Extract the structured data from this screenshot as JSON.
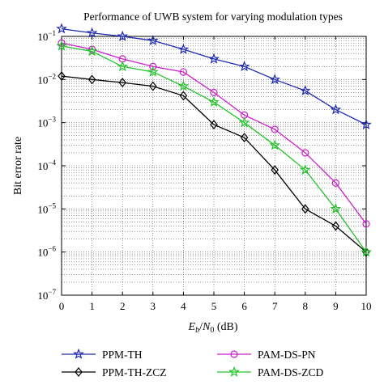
{
  "chart_data": {
    "type": "line",
    "title": "Performance of UWB system for varying modulation types",
    "xlabel": {
      "E": "E",
      "b": "b",
      "slash": "/",
      "N": "N",
      "zero": "0",
      "unit": " (dB)"
    },
    "ylabel": "Bit error rate",
    "xlim": [
      0,
      10
    ],
    "ylim": [
      1e-07,
      0.1
    ],
    "yscale": "log",
    "grid": true,
    "legend_position": "bottom",
    "x_ticks": [
      "0",
      "1",
      "2",
      "3",
      "4",
      "5",
      "6",
      "7",
      "8",
      "9",
      "10"
    ],
    "y_ticks": [
      {
        "base": "10",
        "exp": "−1"
      },
      {
        "base": "10",
        "exp": "−2"
      },
      {
        "base": "10",
        "exp": "−3"
      },
      {
        "base": "10",
        "exp": "−4"
      },
      {
        "base": "10",
        "exp": "−5"
      },
      {
        "base": "10",
        "exp": "−6"
      },
      {
        "base": "10",
        "exp": "−7"
      }
    ],
    "x": [
      0,
      1,
      2,
      3,
      4,
      5,
      6,
      7,
      8,
      9,
      10
    ],
    "series": [
      {
        "name": "PPM-TH",
        "color": "#1f2bb0",
        "marker": "star",
        "values": [
          0.15,
          0.12,
          0.1,
          0.08,
          0.05,
          0.03,
          0.02,
          0.01,
          0.0055,
          0.002,
          0.0009
        ]
      },
      {
        "name": "PPM-TH-ZCZ",
        "color": "#000000",
        "marker": "diamond",
        "values": [
          0.012,
          0.01,
          0.0085,
          0.007,
          0.0042,
          0.0009,
          0.00045,
          8e-05,
          1e-05,
          4e-06,
          1e-06
        ]
      },
      {
        "name": "PAM-DS-PN",
        "color": "#cc1fcc",
        "marker": "circle",
        "values": [
          0.07,
          0.05,
          0.03,
          0.02,
          0.015,
          0.005,
          0.0015,
          0.0007,
          0.0002,
          4e-05,
          4.5e-06
        ]
      },
      {
        "name": "PAM-DS-ZCD",
        "color": "#22c42a",
        "marker": "star",
        "values": [
          0.06,
          0.045,
          0.02,
          0.015,
          0.007,
          0.003,
          0.001,
          0.0003,
          8e-05,
          1e-05,
          1e-06
        ]
      }
    ]
  }
}
